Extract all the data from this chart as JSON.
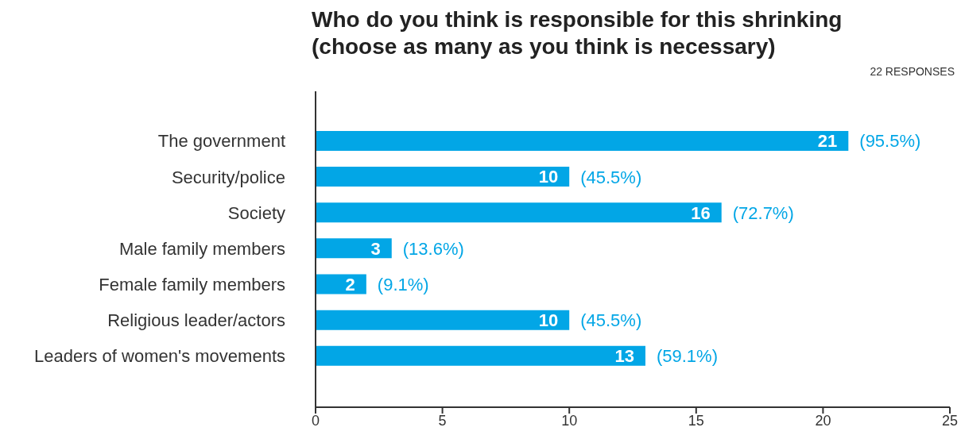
{
  "chart_data": {
    "type": "bar",
    "orientation": "horizontal",
    "title": "Who do you think is responsible for this shrinking (choose as many as you think is necessary)",
    "annotations": [
      "22 RESPONSES",
      {
        "text": "(95.5%)",
        "x": 21,
        "y": "The government"
      },
      {
        "text": "(45.5%)",
        "x": 10,
        "y": "Security/police"
      },
      {
        "text": "(72.7%)",
        "x": 16,
        "y": "Society"
      },
      {
        "text": "(13.6%)",
        "x": 3,
        "y": "Male family members"
      },
      {
        "text": "(9.1%)",
        "x": 2,
        "y": "Female family members"
      },
      {
        "text": "(45.5%)",
        "x": 10,
        "y": "Religious leader/actors"
      },
      {
        "text": "(59.1%)",
        "x": 13,
        "y": "Leaders of women's movements"
      }
    ],
    "categories": [
      "The government",
      "Security/police",
      "Society",
      "Male family members",
      "Female family members",
      "Religious leader/actors",
      "Leaders of women's movements"
    ],
    "values": [
      21,
      10,
      16,
      3,
      2,
      10,
      13
    ],
    "color": "#02a6e6",
    "data_labels": true,
    "xlim": [
      0,
      25
    ],
    "xticks": [
      0,
      5,
      10,
      15,
      20,
      25
    ]
  }
}
